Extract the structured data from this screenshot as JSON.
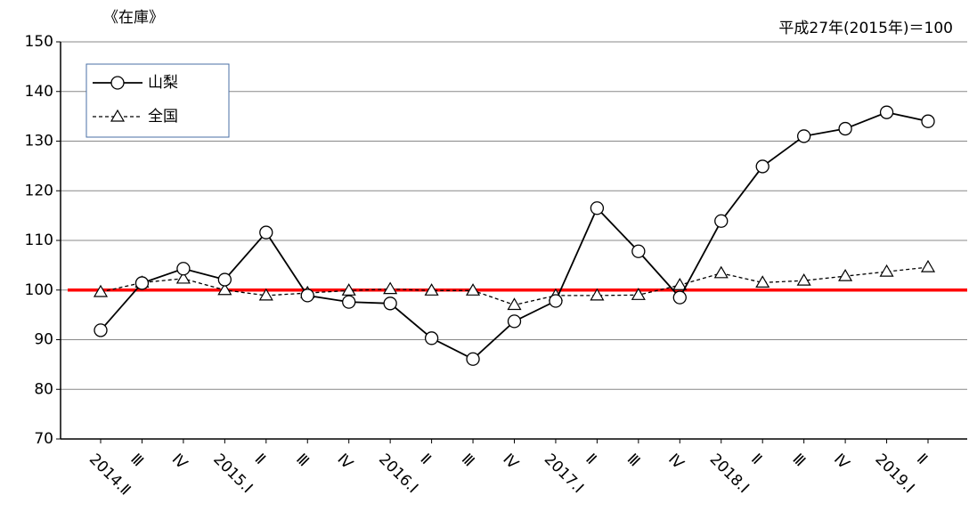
{
  "chart_data": {
    "type": "line",
    "unit_label": "《在庫》",
    "note": "平成27年(2015年)＝100",
    "categories": [
      "2014.Ⅱ",
      "Ⅲ",
      "Ⅳ",
      "2015.Ⅰ",
      "Ⅱ",
      "Ⅲ",
      "Ⅳ",
      "2016.Ⅰ",
      "Ⅱ",
      "Ⅲ",
      "Ⅳ",
      "2017.Ⅰ",
      "Ⅱ",
      "Ⅲ",
      "Ⅳ",
      "2018.Ⅰ",
      "Ⅱ",
      "Ⅲ",
      "Ⅳ",
      "2019.Ⅰ",
      "Ⅱ"
    ],
    "series": [
      {
        "name": "山梨",
        "color": "#000000",
        "dash": "solid",
        "marker": "circle",
        "values": [
          91.9,
          101.4,
          104.3,
          102.1,
          111.6,
          98.9,
          97.6,
          97.3,
          90.3,
          86.1,
          93.7,
          97.8,
          116.5,
          107.8,
          98.5,
          113.9,
          124.9,
          131.0,
          132.5,
          135.8,
          134.0
        ]
      },
      {
        "name": "全国",
        "color": "#000000",
        "dash": "dashed",
        "marker": "triangle",
        "values": [
          99.6,
          101.5,
          102.3,
          100.0,
          98.9,
          99.4,
          99.9,
          100.2,
          99.9,
          99.9,
          97.0,
          98.9,
          98.9,
          99.0,
          101.0,
          103.4,
          101.5,
          101.9,
          102.8,
          103.7,
          104.6
        ]
      }
    ],
    "reference_line": {
      "value": 100,
      "color": "#ff0000"
    },
    "ylim": [
      70,
      150
    ],
    "yticks": [
      70,
      80,
      90,
      100,
      110,
      120,
      130,
      140,
      150
    ],
    "grid": true,
    "legend": "top-left"
  }
}
